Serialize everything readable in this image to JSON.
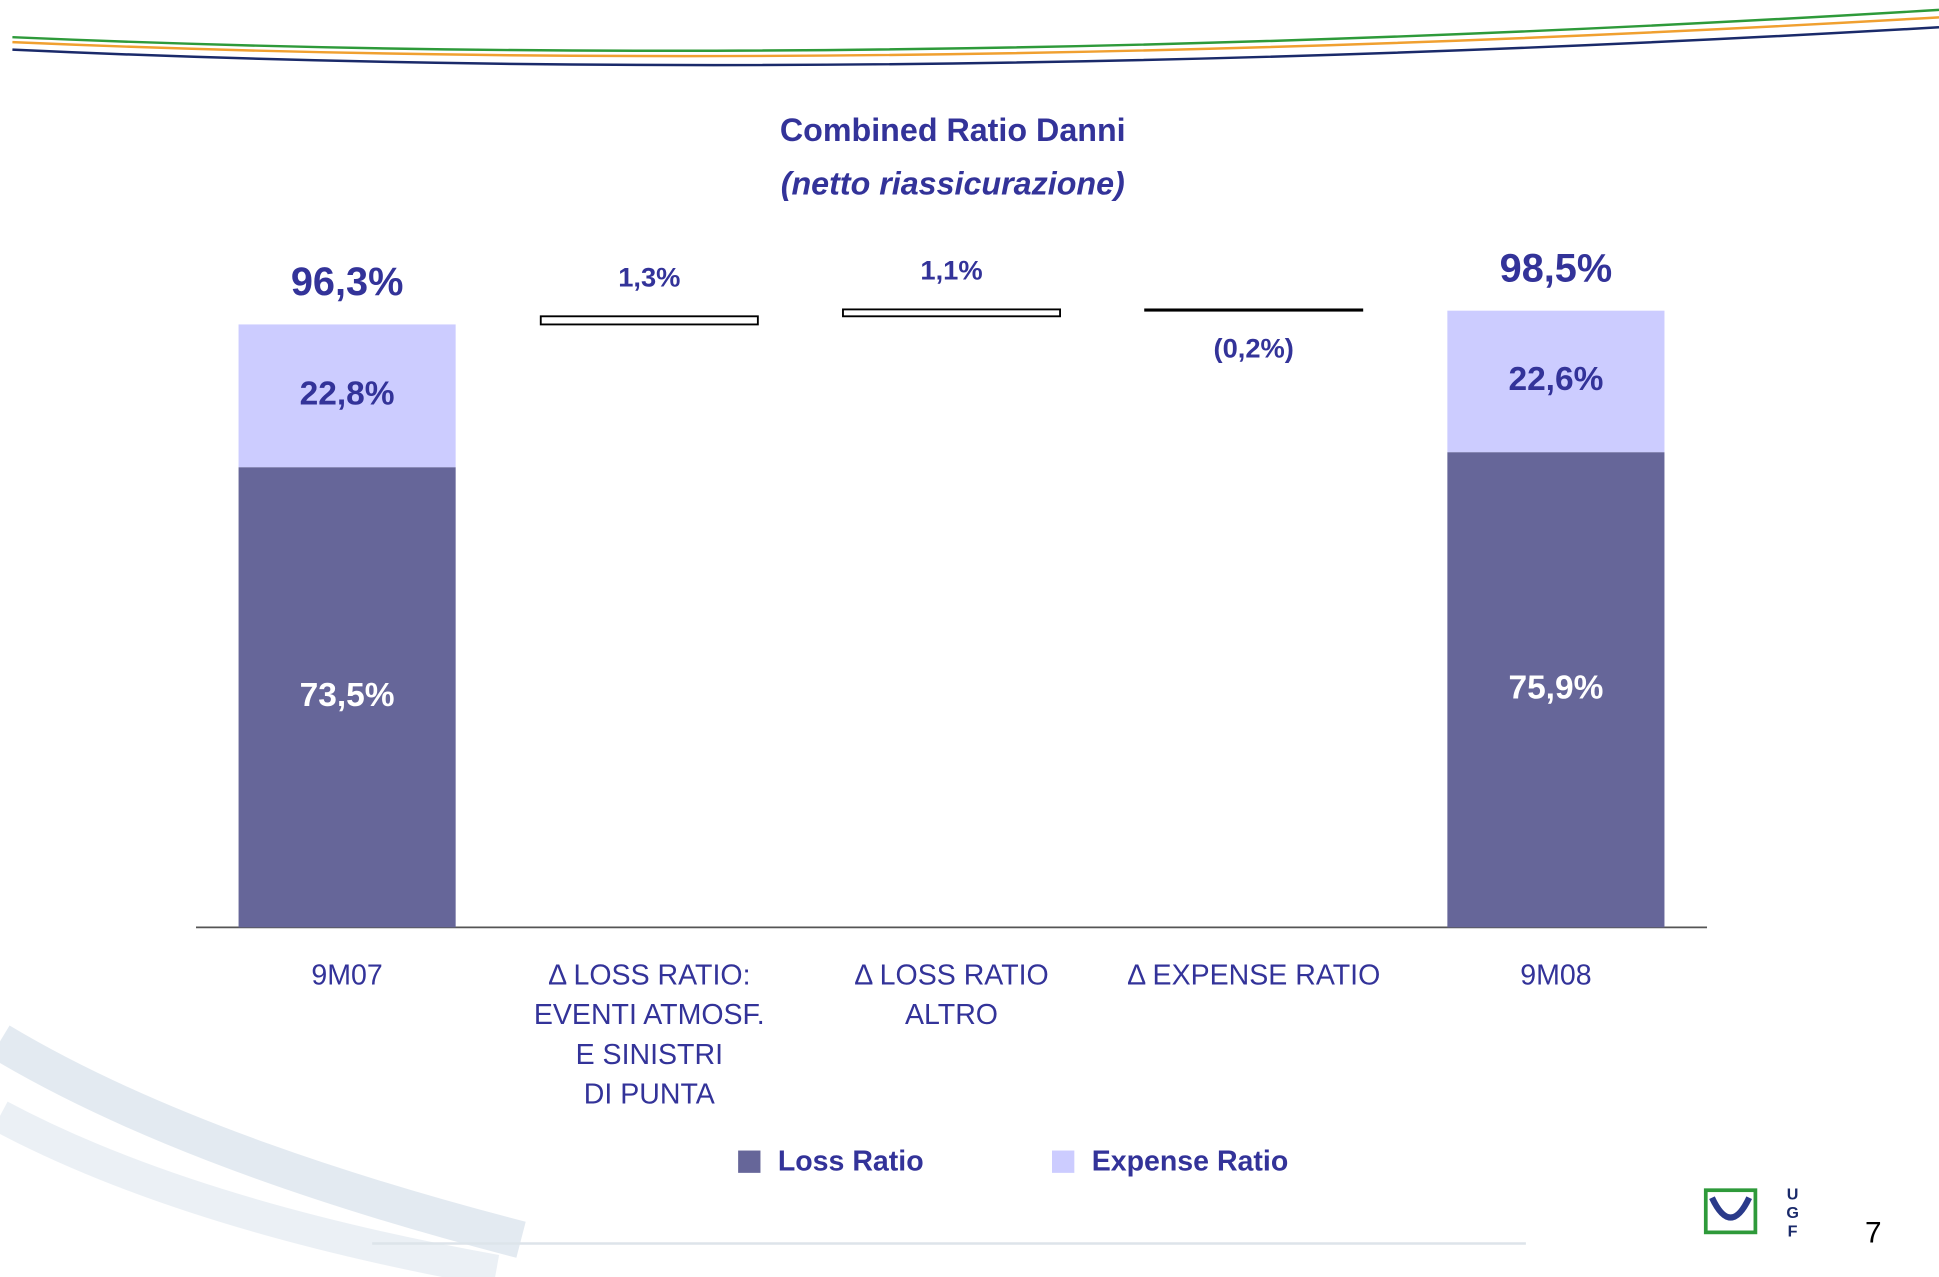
{
  "chart_data": {
    "type": "waterfall",
    "title": "Combined Ratio Danni",
    "subtitle": "(netto riassicurazione)",
    "categories": [
      [
        "9M07"
      ],
      [
        "Δ LOSS RATIO:",
        "EVENTI ATMOSF.",
        "E SINISTRI",
        "DI PUNTA"
      ],
      [
        "Δ LOSS RATIO",
        "ALTRO"
      ],
      [
        "Δ EXPENSE RATIO"
      ],
      [
        "9M08"
      ]
    ],
    "series": [
      {
        "name": "Loss Ratio",
        "color": "#666699",
        "values": [
          73.5,
          null,
          null,
          null,
          75.9
        ],
        "value_labels": [
          "73,5%",
          null,
          null,
          null,
          "75,9%"
        ]
      },
      {
        "name": "Expense Ratio",
        "color": "#ccccff",
        "values": [
          22.8,
          null,
          null,
          null,
          22.6
        ],
        "value_labels": [
          "22,8%",
          null,
          null,
          null,
          "22,6%"
        ]
      }
    ],
    "changes": {
      "values": [
        null,
        1.3,
        1.1,
        -0.2,
        null
      ],
      "value_labels": [
        null,
        "1,3%",
        "1,1%",
        "(0,2%)",
        null
      ]
    },
    "totals": {
      "values": [
        96.3,
        null,
        null,
        null,
        98.5
      ],
      "value_labels": [
        "96,3%",
        null,
        null,
        null,
        "98,5%"
      ]
    },
    "ylim": [
      0,
      100
    ],
    "page_number": "7",
    "logo_letters": [
      "U",
      "G",
      "F"
    ]
  }
}
